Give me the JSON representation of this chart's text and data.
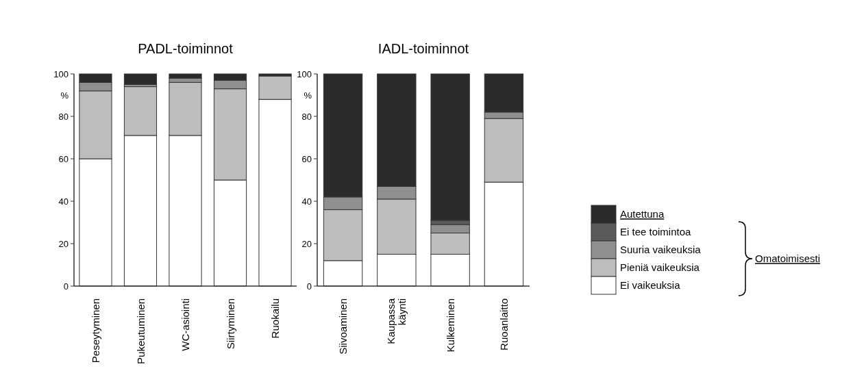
{
  "chart_data": [
    {
      "type": "bar",
      "title": "PADL-toiminnot",
      "ylabel": "%",
      "stacked": true,
      "categories": [
        "Peseytyminen",
        "Pukeutuminen",
        "WC-asiointi",
        "Siirtyminen",
        "Ruokailu"
      ],
      "series": [
        {
          "color": "#ffffff",
          "values": [
            60,
            71,
            71,
            50,
            88
          ]
        },
        {
          "color": "#bdbdbd",
          "values": [
            32,
            23,
            25,
            43,
            11
          ]
        },
        {
          "color": "#8f8f8f",
          "values": [
            4,
            1,
            2,
            4,
            0
          ]
        },
        {
          "color": "#5a5a5a",
          "values": [
            0,
            0,
            0,
            0,
            0
          ]
        },
        {
          "color": "#2b2b2b",
          "values": [
            4,
            5,
            2,
            3,
            1
          ]
        }
      ],
      "ylim": [
        0,
        100
      ],
      "yticks": [
        0,
        20,
        40,
        60,
        80,
        100
      ],
      "grid": false,
      "legend": false
    },
    {
      "type": "bar",
      "title": "IADL-toiminnot",
      "ylabel": "%",
      "stacked": true,
      "categories": [
        "Siivoaminen",
        "Kaupassa käynti",
        "Kulkeminen",
        "Ruoanlaitto"
      ],
      "series": [
        {
          "name": "Ei vaikeuksia",
          "color": "#ffffff",
          "values": [
            12,
            15,
            15,
            49
          ]
        },
        {
          "name": "Pieniä vaikeuksia",
          "color": "#bdbdbd",
          "values": [
            24,
            26,
            10,
            30
          ]
        },
        {
          "name": "Suuria vaikeuksia",
          "color": "#8f8f8f",
          "values": [
            6,
            6,
            4,
            3
          ]
        },
        {
          "name": "Ei tee toimintoa",
          "color": "#5a5a5a",
          "values": [
            0,
            0,
            2,
            0
          ]
        },
        {
          "name": "Autettuna",
          "color": "#2b2b2b",
          "values": [
            58,
            53,
            69,
            18
          ]
        }
      ],
      "ylim": [
        0,
        100
      ],
      "yticks": [
        0,
        20,
        40,
        60,
        80,
        100
      ],
      "grid": false,
      "legend": "right",
      "annotations": [
        "Omatoimisesti"
      ]
    }
  ]
}
